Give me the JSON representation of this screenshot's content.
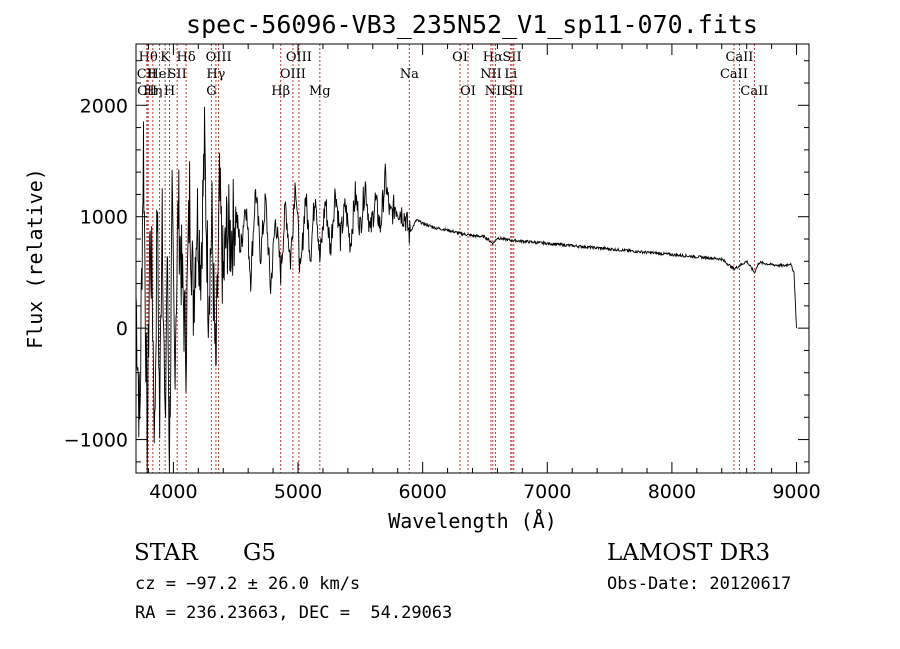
{
  "chart_data": {
    "type": "line",
    "title": "spec-56096-VB3_235N52_V1_sp11-070.fits",
    "xlabel": "Wavelength (Å)",
    "ylabel": "Flux (relative)",
    "xlim": [
      3700,
      9100
    ],
    "ylim": [
      -1300,
      2550
    ],
    "xticks": [
      4000,
      5000,
      6000,
      7000,
      8000,
      9000
    ],
    "xtick_labels": [
      "4000",
      "5000",
      "6000",
      "7000",
      "8000",
      "9000"
    ],
    "yticks": [
      -1000,
      0,
      1000,
      2000
    ],
    "ytick_labels": [
      "−1000",
      "0",
      "1000",
      "2000"
    ],
    "series": [
      {
        "name": "spectrum",
        "x": [
          3700,
          3730,
          3760,
          3790,
          3810,
          3830,
          3850,
          3870,
          3890,
          3910,
          3933,
          3950,
          3968,
          3990,
          4010,
          4040,
          4070,
          4101,
          4130,
          4160,
          4190,
          4220,
          4250,
          4280,
          4310,
          4340,
          4370,
          4400,
          4430,
          4460,
          4500,
          4540,
          4580,
          4620,
          4660,
          4700,
          4740,
          4780,
          4820,
          4861,
          4900,
          4940,
          4980,
          5020,
          5060,
          5100,
          5140,
          5175,
          5220,
          5260,
          5300,
          5340,
          5380,
          5420,
          5460,
          5500,
          5540,
          5580,
          5620,
          5660,
          5700,
          5740,
          5780,
          5820,
          5860,
          5893,
          5950,
          6000,
          6100,
          6200,
          6300,
          6400,
          6500,
          6563,
          6600,
          6700,
          6800,
          7000,
          7200,
          7400,
          7600,
          7800,
          8000,
          8200,
          8400,
          8498,
          8542,
          8600,
          8662,
          8700,
          8800,
          8900,
          8950,
          8980,
          9000
        ],
        "y": [
          300,
          -900,
          1700,
          -1150,
          800,
          400,
          -1000,
          1100,
          -900,
          1300,
          -1100,
          700,
          -1200,
          1000,
          -300,
          1100,
          400,
          -150,
          1200,
          250,
          1050,
          600,
          1600,
          300,
          950,
          -500,
          1200,
          400,
          900,
          800,
          1050,
          700,
          1150,
          450,
          1250,
          650,
          1150,
          350,
          1000,
          500,
          1100,
          600,
          1350,
          450,
          1200,
          650,
          1250,
          600,
          1150,
          700,
          1250,
          800,
          1100,
          750,
          1200,
          900,
          1300,
          850,
          1150,
          900,
          1350,
          1000,
          1100,
          1050,
          1000,
          850,
          970,
          940,
          900,
          880,
          850,
          830,
          820,
          760,
          810,
          790,
          780,
          760,
          740,
          720,
          700,
          680,
          660,
          640,
          620,
          530,
          560,
          600,
          500,
          590,
          570,
          560,
          580,
          500,
          0
        ]
      }
    ],
    "line_marks": [
      {
        "label": "Hθ",
        "wl": 3798,
        "row": 1
      },
      {
        "label": "CII",
        "wl": 3787,
        "row": 2
      },
      {
        "label": "CII",
        "wl": 3790,
        "row": 3
      },
      {
        "label": "Hη",
        "wl": 3835,
        "row": 3
      },
      {
        "label": "K",
        "wl": 3934,
        "row": 1
      },
      {
        "label": "HeI",
        "wl": 3889,
        "row": 2
      },
      {
        "label": "SII",
        "wl": 4030,
        "row": 2
      },
      {
        "label": "H",
        "wl": 3969,
        "row": 3
      },
      {
        "label": "Hδ",
        "wl": 4102,
        "row": 1
      },
      {
        "label": "OIII",
        "wl": 4363,
        "row": 1
      },
      {
        "label": "Hγ",
        "wl": 4341,
        "row": 2
      },
      {
        "label": "G",
        "wl": 4305,
        "row": 3
      },
      {
        "label": "OIII",
        "wl": 5007,
        "row": 1
      },
      {
        "label": "OIII",
        "wl": 4959,
        "row": 2
      },
      {
        "label": "Hβ",
        "wl": 4861,
        "row": 3
      },
      {
        "label": "Mg",
        "wl": 5175,
        "row": 3
      },
      {
        "label": "Na",
        "wl": 5893,
        "row": 2
      },
      {
        "label": "OI",
        "wl": 6300,
        "row": 1
      },
      {
        "label": "OI",
        "wl": 6364,
        "row": 3
      },
      {
        "label": "Hα",
        "wl": 6563,
        "row": 1
      },
      {
        "label": "SII",
        "wl": 6717,
        "row": 1
      },
      {
        "label": "NII",
        "wl": 6548,
        "row": 2
      },
      {
        "label": "Li",
        "wl": 6707,
        "row": 2
      },
      {
        "label": "NII",
        "wl": 6584,
        "row": 3
      },
      {
        "label": "SII",
        "wl": 6731,
        "row": 3
      },
      {
        "label": "CaII",
        "wl": 8542,
        "row": 1
      },
      {
        "label": "CaII",
        "wl": 8498,
        "row": 2
      },
      {
        "label": "CaII",
        "wl": 8662,
        "row": 3
      }
    ]
  },
  "info": {
    "object_class": "STAR",
    "subclass": "G5",
    "survey": "LAMOST DR3",
    "redshift": "cz = −97.2 ± 26.0 km/s",
    "obs_date": "Obs-Date: 20120617",
    "coords": "RA = 236.23663, DEC =  54.29063"
  },
  "colors": {
    "line_marker": "#c0392b",
    "spectrum": "#000000",
    "axes": "#000000"
  }
}
